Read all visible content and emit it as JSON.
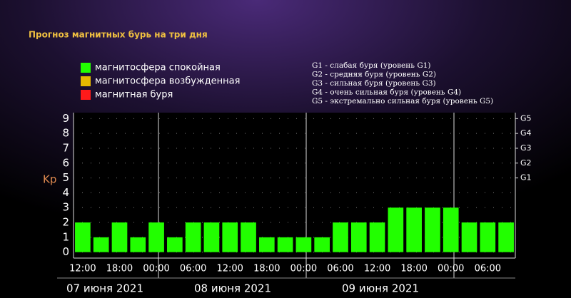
{
  "chart_data": {
    "type": "bar",
    "title": "Прогноз магнитных бурь на три дня",
    "y_label": "Kp",
    "legend": [
      {
        "label": "магнитосфера спокойная",
        "color": "#22ff00"
      },
      {
        "label": "магнитосфера возбужденная",
        "color": "#e6b800"
      },
      {
        "label": "магнитная буря",
        "color": "#ff1a1a"
      }
    ],
    "scale_notes": [
      "G1 - слабая буря (уровень G1)",
      "G2 - средняя буря (уровень G2)",
      "G3 - сильная буря (уровень G3)",
      "G4 - очень сильная буря (уровень G4)",
      "G5 - экстремально сильная буря (уровень G5)"
    ],
    "categories": [
      "12:00",
      null,
      "18:00",
      null,
      "00:00",
      null,
      "06:00",
      null,
      "12:00",
      null,
      "18:00",
      null,
      "00:00",
      null,
      "06:00",
      null,
      "12:00",
      null,
      "18:00",
      null,
      "00:00",
      null,
      "06:00",
      null
    ],
    "values": [
      2,
      1,
      2,
      1,
      2,
      1,
      2,
      2,
      2,
      2,
      1,
      1,
      1,
      1,
      2,
      2,
      2,
      3,
      3,
      3,
      3,
      2,
      2,
      2
    ],
    "color": "#22ff00",
    "days": [
      "07 июня 2021",
      "08 июня 2021",
      "09 июня 2021"
    ],
    "ylim": [
      -0.4,
      9.4
    ],
    "yticks": [
      0,
      1,
      2,
      3,
      4,
      5,
      6,
      7,
      8,
      9
    ],
    "y2lim": [
      -0.4,
      9.4
    ],
    "y2ticks": [
      {
        "value": 5,
        "label": "G1"
      },
      {
        "value": 6,
        "label": "G2"
      },
      {
        "value": 7,
        "label": "G3"
      },
      {
        "value": 8,
        "label": "G4"
      },
      {
        "value": 9,
        "label": "G5"
      }
    ],
    "grid": true
  }
}
